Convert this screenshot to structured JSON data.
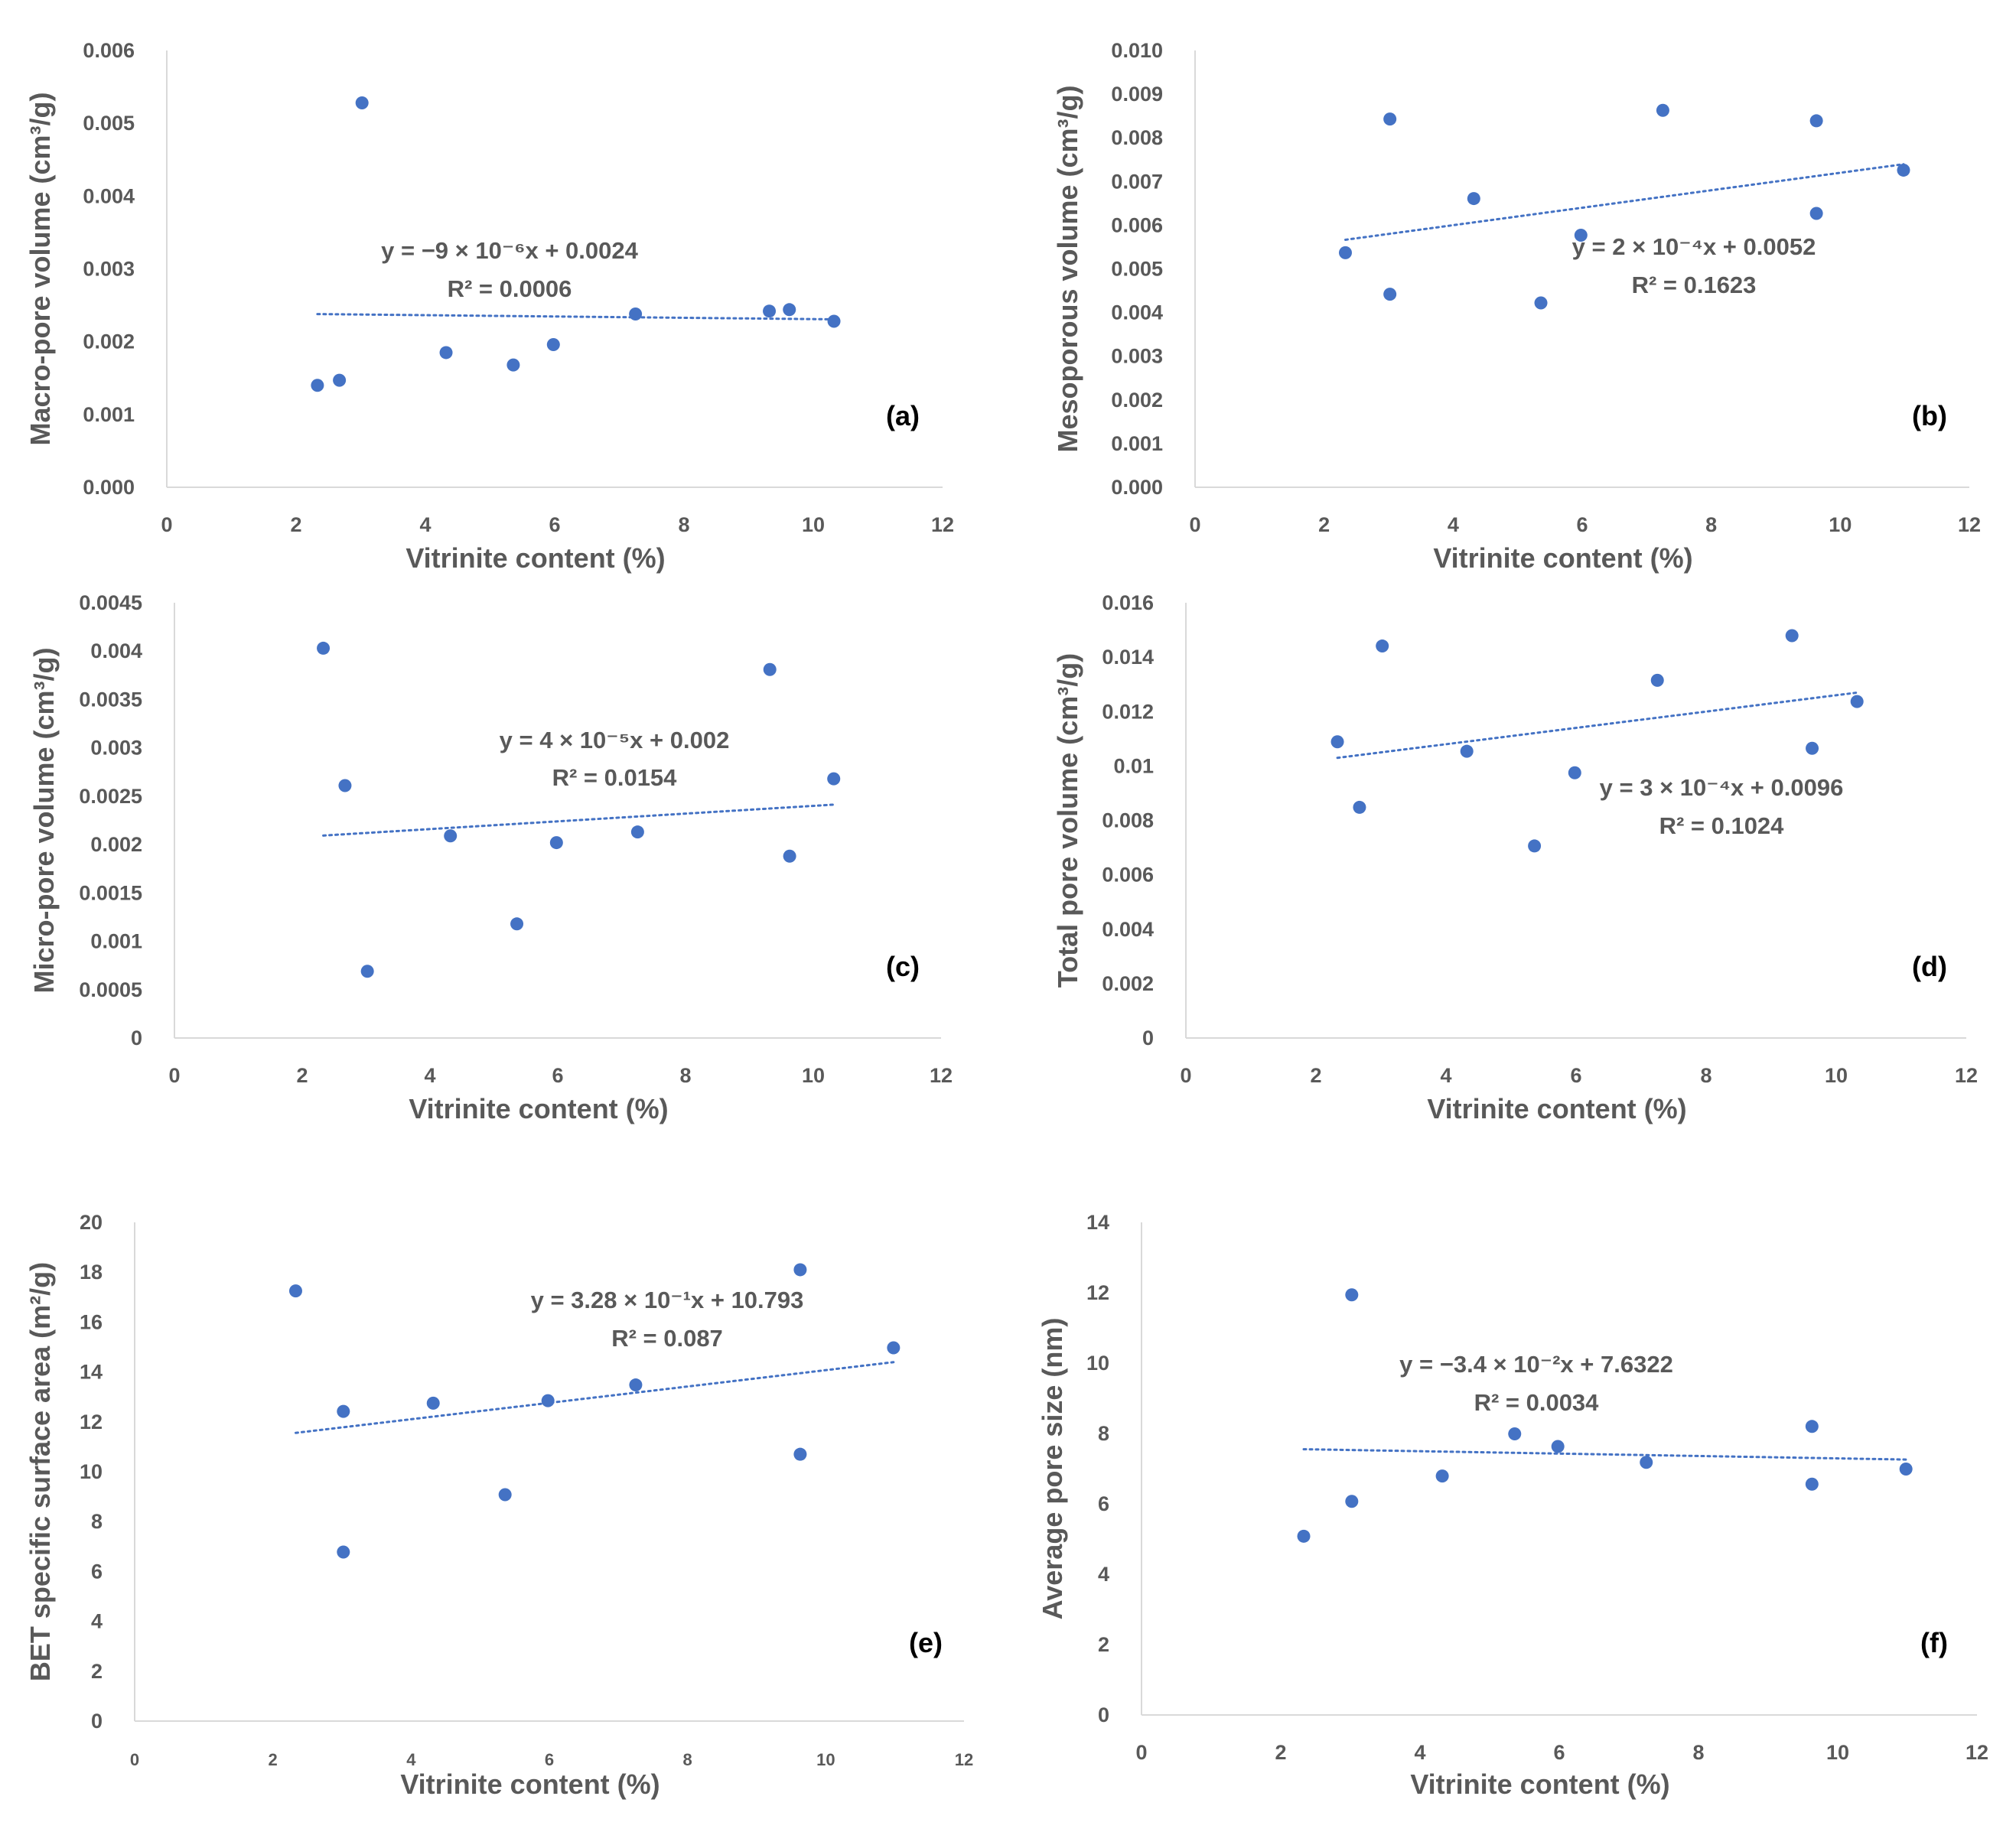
{
  "colors": {
    "marker": "#4472C4",
    "trend": "#4472C4",
    "axis": "#D9D9D9",
    "text": "#595959",
    "panel_label": "#000000"
  },
  "chart_data": [
    {
      "type": "scatter",
      "panel": "(a)",
      "xlabel": "Vitrinite content (%)",
      "ylabel": "Macro-pore volume (cm³/g)",
      "xlim": [
        0,
        12
      ],
      "ylim": [
        0,
        0.006
      ],
      "x_ticks": [
        0,
        2,
        4,
        6,
        8,
        10,
        12
      ],
      "x_tick_labels": [
        "0",
        "2",
        "4",
        "6",
        "8",
        "10",
        "12"
      ],
      "y_ticks": [
        0,
        0.001,
        0.002,
        0.003,
        0.004,
        0.005,
        0.006
      ],
      "y_tick_labels": [
        "0.000",
        "0.001",
        "0.002",
        "0.003",
        "0.004",
        "0.005",
        "0.006"
      ],
      "points": [
        [
          2.33,
          0.0014
        ],
        [
          2.67,
          0.00147
        ],
        [
          3.02,
          0.00528
        ],
        [
          4.32,
          0.00185
        ],
        [
          5.36,
          0.00168
        ],
        [
          5.98,
          0.00196
        ],
        [
          7.25,
          0.00238
        ],
        [
          9.32,
          0.00242
        ],
        [
          9.63,
          0.00244
        ],
        [
          10.32,
          0.00228
        ]
      ],
      "trendline": {
        "slope": -9e-06,
        "intercept": 0.0024,
        "x_start": 2.33,
        "x_end": 10.32
      },
      "equation": "y = −9 × 10⁻⁶x + 0.0024",
      "r2": "R² = 0.0006"
    },
    {
      "type": "scatter",
      "panel": "(b)",
      "xlabel": "Vitrinite content (%)",
      "ylabel": "Mesoporous volume (cm³/g)",
      "xlim": [
        0,
        12
      ],
      "ylim": [
        0,
        0.01
      ],
      "x_ticks": [
        0,
        2,
        4,
        6,
        8,
        10,
        12
      ],
      "x_tick_labels": [
        "0",
        "2",
        "4",
        "6",
        "8",
        "10",
        "12"
      ],
      "y_ticks": [
        0,
        0.001,
        0.002,
        0.003,
        0.004,
        0.005,
        0.006,
        0.007,
        0.008,
        0.009,
        0.01
      ],
      "y_tick_labels": [
        "0.000",
        "0.001",
        "0.002",
        "0.003",
        "0.004",
        "0.005",
        "0.006",
        "0.007",
        "0.008",
        "0.009",
        "0.010"
      ],
      "points": [
        [
          2.33,
          0.00537
        ],
        [
          3.02,
          0.00843
        ],
        [
          3.02,
          0.00442
        ],
        [
          4.32,
          0.00661
        ],
        [
          5.36,
          0.00422
        ],
        [
          5.98,
          0.00577
        ],
        [
          7.25,
          0.00863
        ],
        [
          9.63,
          0.00839
        ],
        [
          9.63,
          0.00627
        ],
        [
          10.98,
          0.00726
        ]
      ],
      "trendline": {
        "slope": 0.0002,
        "intercept": 0.0052,
        "x_start": 2.33,
        "x_end": 10.98
      },
      "equation": "y = 2 × 10⁻⁴x + 0.0052",
      "r2": "R² = 0.1623"
    },
    {
      "type": "scatter",
      "panel": "(c)",
      "xlabel": "Vitrinite content (%)",
      "ylabel": "Micro-pore volume (cm³/g)",
      "xlim": [
        0,
        12
      ],
      "ylim": [
        0,
        0.0045
      ],
      "x_ticks": [
        0,
        2,
        4,
        6,
        8,
        10,
        12
      ],
      "x_tick_labels": [
        "0",
        "2",
        "4",
        "6",
        "8",
        "10",
        "12"
      ],
      "y_ticks": [
        0,
        0.0005,
        0.001,
        0.0015,
        0.002,
        0.0025,
        0.003,
        0.0035,
        0.004,
        0.0045
      ],
      "y_tick_labels": [
        "0",
        "0.0005",
        "0.001",
        "0.0015",
        "0.002",
        "0.0025",
        "0.003",
        "0.0035",
        "0.004",
        "0.0045"
      ],
      "points": [
        [
          2.33,
          0.00403
        ],
        [
          2.67,
          0.00261
        ],
        [
          3.02,
          0.00069
        ],
        [
          4.32,
          0.00209
        ],
        [
          5.36,
          0.00118
        ],
        [
          5.98,
          0.00202
        ],
        [
          7.25,
          0.00213
        ],
        [
          9.32,
          0.00381
        ],
        [
          9.63,
          0.00188
        ],
        [
          10.32,
          0.00268
        ]
      ],
      "trendline": {
        "slope": 4e-05,
        "intercept": 0.002,
        "x_start": 2.33,
        "x_end": 10.32
      },
      "equation": "y = 4 × 10⁻⁵x + 0.002",
      "r2": "R² = 0.0154"
    },
    {
      "type": "scatter",
      "panel": "(d)",
      "xlabel": "Vitrinite content (%)",
      "ylabel": "Total pore volume (cm³/g)",
      "xlim": [
        0,
        12
      ],
      "ylim": [
        0,
        0.016
      ],
      "x_ticks": [
        0,
        2,
        4,
        6,
        8,
        10,
        12
      ],
      "x_tick_labels": [
        "0",
        "2",
        "4",
        "6",
        "8",
        "10",
        "12"
      ],
      "y_ticks": [
        0,
        0.002,
        0.004,
        0.006,
        0.008,
        0.01,
        0.012,
        0.014,
        0.016
      ],
      "y_tick_labels": [
        "0",
        "0.002",
        "0.004",
        "0.006",
        "0.008",
        "0.01",
        "0.012",
        "0.014",
        "0.016"
      ],
      "points": [
        [
          2.33,
          0.01089
        ],
        [
          2.67,
          0.00848
        ],
        [
          3.02,
          0.01441
        ],
        [
          4.32,
          0.01054
        ],
        [
          5.36,
          0.00706
        ],
        [
          5.98,
          0.00975
        ],
        [
          7.25,
          0.01315
        ],
        [
          9.32,
          0.01479
        ],
        [
          9.63,
          0.01065
        ],
        [
          10.32,
          0.01237
        ]
      ],
      "trendline": {
        "slope": 0.0003,
        "intercept": 0.0096,
        "x_start": 2.33,
        "x_end": 10.32
      },
      "equation": "y = 3 × 10⁻⁴x + 0.0096",
      "r2": "R² = 0.1024"
    },
    {
      "type": "scatter",
      "panel": "(e)",
      "xlabel": "Vitrinite content (%)",
      "ylabel": "BET specific surface area (m²/g)",
      "xlim": [
        0,
        12
      ],
      "ylim": [
        0,
        20
      ],
      "x_ticks": [
        0,
        2,
        4,
        6,
        8,
        10,
        12
      ],
      "x_tick_labels": [
        "0",
        "2",
        "4",
        "6",
        "8",
        "10",
        "12"
      ],
      "y_ticks": [
        0,
        2,
        4,
        6,
        8,
        10,
        12,
        14,
        16,
        18,
        20
      ],
      "y_tick_labels": [
        "0",
        "2",
        "4",
        "6",
        "8",
        "10",
        "12",
        "14",
        "16",
        "18",
        "20"
      ],
      "points": [
        [
          2.33,
          17.25
        ],
        [
          3.02,
          12.42
        ],
        [
          3.02,
          6.78
        ],
        [
          4.32,
          12.75
        ],
        [
          5.36,
          9.08
        ],
        [
          5.98,
          12.85
        ],
        [
          7.25,
          13.48
        ],
        [
          9.63,
          18.1
        ],
        [
          9.63,
          10.7
        ],
        [
          10.98,
          14.97
        ]
      ],
      "trendline": {
        "slope": 0.328,
        "intercept": 10.793,
        "x_start": 2.33,
        "x_end": 10.98
      },
      "equation": "y = 3.28 × 10⁻¹x + 10.793",
      "r2": "R² = 0.087"
    },
    {
      "type": "scatter",
      "panel": "(f)",
      "xlabel": "Vitrinite content (%)",
      "ylabel": "Average pore size (nm)",
      "xlim": [
        0,
        12
      ],
      "ylim": [
        0,
        14
      ],
      "x_ticks": [
        0,
        2,
        4,
        6,
        8,
        10,
        12
      ],
      "x_tick_labels": [
        "0",
        "2",
        "4",
        "6",
        "8",
        "10",
        "12"
      ],
      "y_ticks": [
        0,
        2,
        4,
        6,
        8,
        10,
        12,
        14
      ],
      "y_tick_labels": [
        "0",
        "2",
        "4",
        "6",
        "8",
        "10",
        "12",
        "14"
      ],
      "points": [
        [
          2.33,
          5.08
        ],
        [
          3.02,
          11.94
        ],
        [
          3.02,
          6.07
        ],
        [
          4.32,
          6.79
        ],
        [
          5.36,
          7.99
        ],
        [
          5.98,
          7.63
        ],
        [
          7.25,
          7.18
        ],
        [
          9.63,
          8.2
        ],
        [
          9.63,
          6.56
        ],
        [
          10.98,
          6.99
        ]
      ],
      "trendline": {
        "slope": -0.034,
        "intercept": 7.6322,
        "x_start": 2.33,
        "x_end": 10.98
      },
      "equation": "y = −3.4 × 10⁻²x + 7.6322",
      "r2": "R² = 0.0034"
    }
  ]
}
